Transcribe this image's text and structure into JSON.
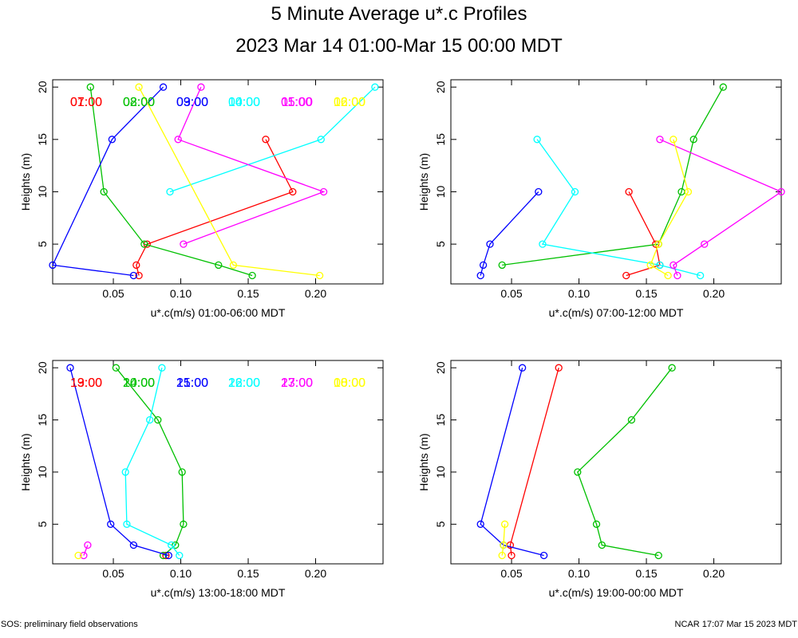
{
  "title": "5 Minute Average u*.c Profiles",
  "subtitle": "2023 Mar 14 01:00-Mar 15 00:00 MDT",
  "footer_left": "SOS: preliminary field observations",
  "footer_right": "NCAR 17:07 Mar 15 2023 MDT",
  "colors": [
    "#ff0000",
    "#00c000",
    "#0000ff",
    "#00ffff",
    "#ff00ff",
    "#ffff00"
  ],
  "chart_data": [
    {
      "type": "line",
      "xlabel": "u*.c(m/s) 01:00-06:00 MDT",
      "ylabel": "Heights (m)",
      "xlim": [
        0.005,
        0.25
      ],
      "ylim": [
        1.2,
        20.7
      ],
      "xticks": [
        "0.05",
        "0.10",
        "0.15",
        "0.20"
      ],
      "yticks": [
        "5",
        "10",
        "15",
        "20"
      ],
      "grid": false,
      "series": [
        {
          "name": "01:00",
          "points": [
            [
              0.069,
              2
            ],
            [
              0.067,
              3
            ],
            [
              0.075,
              5
            ],
            [
              0.183,
              10
            ],
            [
              0.163,
              15
            ]
          ]
        },
        {
          "name": "02:00",
          "points": [
            [
              0.153,
              2
            ],
            [
              0.128,
              3
            ],
            [
              0.073,
              5
            ],
            [
              0.043,
              10
            ],
            [
              0.033,
              20
            ]
          ]
        },
        {
          "name": "03:00",
          "points": [
            [
              0.065,
              2
            ],
            [
              0.005,
              3
            ],
            [
              0.049,
              15
            ],
            [
              0.087,
              20
            ]
          ]
        },
        {
          "name": "04:00",
          "points": [
            [
              0.092,
              10
            ],
            [
              0.204,
              15
            ],
            [
              0.244,
              20
            ]
          ]
        },
        {
          "name": "05:00",
          "points": [
            [
              0.102,
              5
            ],
            [
              0.206,
              10
            ],
            [
              0.098,
              15
            ],
            [
              0.115,
              20
            ]
          ]
        },
        {
          "name": "06:00",
          "points": [
            [
              0.203,
              2
            ],
            [
              0.139,
              3
            ],
            [
              0.069,
              20
            ]
          ]
        }
      ]
    },
    {
      "type": "line",
      "xlabel": "u*.c(m/s) 07:00-12:00 MDT",
      "ylabel": "Heights (m)",
      "xlim": [
        0.005,
        0.25
      ],
      "ylim": [
        1.2,
        20.7
      ],
      "xticks": [
        "0.05",
        "0.10",
        "0.15",
        "0.20"
      ],
      "yticks": [
        "5",
        "10",
        "15",
        "20"
      ],
      "grid": false,
      "series": [
        {
          "name": "07:00",
          "points": [
            [
              0.135,
              2
            ],
            [
              0.16,
              3
            ],
            [
              0.157,
              5
            ],
            [
              0.137,
              10
            ]
          ]
        },
        {
          "name": "08:00",
          "points": [
            [
              0.043,
              3
            ],
            [
              0.159,
              5
            ],
            [
              0.176,
              10
            ],
            [
              0.185,
              15
            ],
            [
              0.207,
              20
            ]
          ]
        },
        {
          "name": "09:00",
          "points": [
            [
              0.027,
              2
            ],
            [
              0.029,
              3
            ],
            [
              0.034,
              5
            ],
            [
              0.07,
              10
            ]
          ]
        },
        {
          "name": "10:00",
          "points": [
            [
              0.19,
              2
            ],
            [
              0.16,
              3
            ],
            [
              0.073,
              5
            ],
            [
              0.097,
              10
            ],
            [
              0.069,
              15
            ]
          ]
        },
        {
          "name": "11:00",
          "points": [
            [
              0.173,
              2
            ],
            [
              0.17,
              3
            ],
            [
              0.193,
              5
            ],
            [
              0.25,
              10
            ],
            [
              0.16,
              15
            ]
          ]
        },
        {
          "name": "12:00",
          "points": [
            [
              0.166,
              2
            ],
            [
              0.153,
              3
            ],
            [
              0.159,
              5
            ],
            [
              0.181,
              10
            ],
            [
              0.17,
              15
            ]
          ]
        }
      ]
    },
    {
      "type": "line",
      "xlabel": "u*.c(m/s) 13:00-18:00 MDT",
      "ylabel": "Heights (m)",
      "xlim": [
        0.005,
        0.25
      ],
      "ylim": [
        1.2,
        20.7
      ],
      "xticks": [
        "0.05",
        "0.10",
        "0.15",
        "0.20"
      ],
      "yticks": [
        "5",
        "10",
        "15",
        "20"
      ],
      "grid": false,
      "series": [
        {
          "name": "13:00",
          "points": [
            [
              0.089,
              2
            ]
          ]
        },
        {
          "name": "14:00",
          "points": [
            [
              0.087,
              2
            ],
            [
              0.096,
              3
            ],
            [
              0.102,
              5
            ],
            [
              0.101,
              10
            ],
            [
              0.083,
              15
            ],
            [
              0.052,
              20
            ]
          ]
        },
        {
          "name": "15:00",
          "points": [
            [
              0.091,
              2
            ],
            [
              0.065,
              3
            ],
            [
              0.048,
              5
            ],
            [
              0.018,
              20
            ]
          ]
        },
        {
          "name": "16:00",
          "points": [
            [
              0.099,
              2
            ],
            [
              0.093,
              3
            ],
            [
              0.06,
              5
            ],
            [
              0.059,
              10
            ],
            [
              0.077,
              15
            ],
            [
              0.086,
              20
            ]
          ]
        },
        {
          "name": "17:00",
          "points": [
            [
              0.028,
              2
            ],
            [
              0.031,
              3
            ]
          ]
        },
        {
          "name": "18:00",
          "points": [
            [
              0.024,
              2
            ]
          ]
        }
      ]
    },
    {
      "type": "line",
      "xlabel": "u*.c(m/s) 19:00-00:00 MDT",
      "ylabel": "Heights (m)",
      "xlim": [
        0.005,
        0.25
      ],
      "ylim": [
        1.2,
        20.7
      ],
      "xticks": [
        "0.05",
        "0.10",
        "0.15",
        "0.20"
      ],
      "yticks": [
        "5",
        "10",
        "15",
        "20"
      ],
      "grid": false,
      "series": [
        {
          "name": "19:00",
          "points": [
            [
              0.05,
              2
            ],
            [
              0.049,
              3
            ],
            [
              0.085,
              20
            ]
          ]
        },
        {
          "name": "20:00",
          "points": [
            [
              0.159,
              2
            ],
            [
              0.117,
              3
            ],
            [
              0.113,
              5
            ],
            [
              0.099,
              10
            ],
            [
              0.139,
              15
            ],
            [
              0.169,
              20
            ]
          ]
        },
        {
          "name": "21:00",
          "points": [
            [
              0.074,
              2
            ],
            [
              0.044,
              3
            ],
            [
              0.027,
              5
            ],
            [
              0.058,
              20
            ]
          ]
        },
        {
          "name": "22:00",
          "points": [
            [
              0.044,
              3
            ]
          ]
        },
        {
          "name": "23:00",
          "points": []
        },
        {
          "name": "00:00",
          "points": [
            [
              0.043,
              2
            ],
            [
              0.044,
              3
            ],
            [
              0.045,
              5
            ]
          ]
        }
      ]
    }
  ]
}
